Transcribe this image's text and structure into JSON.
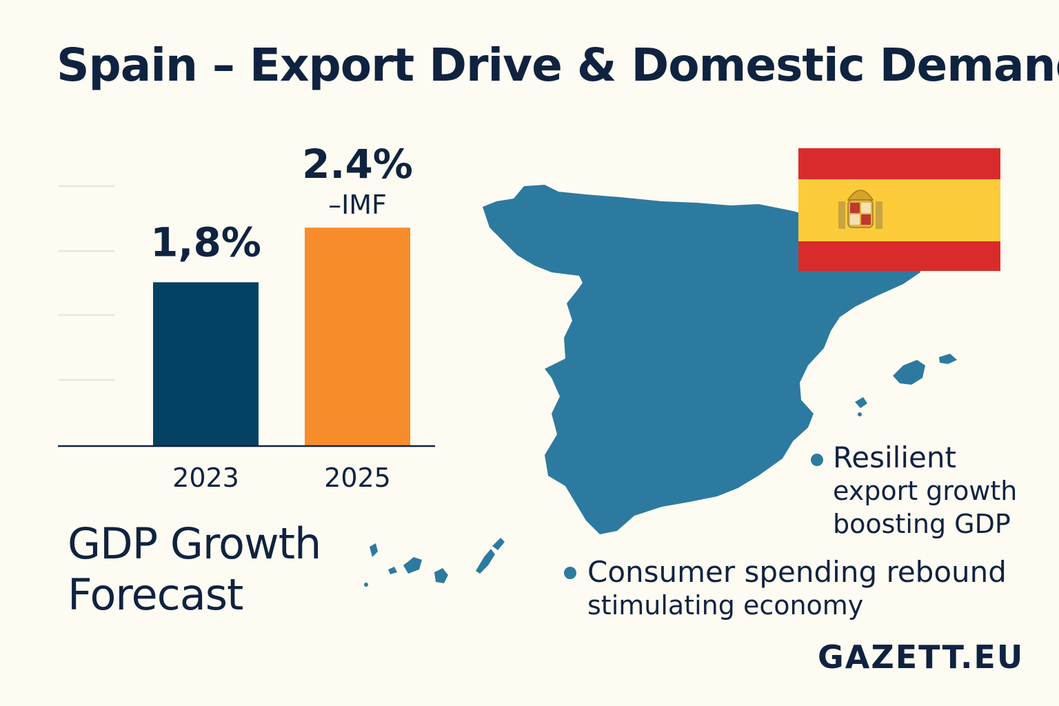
{
  "title": "Spain – Export Drive & Domestic Demand",
  "chart_data": {
    "type": "bar",
    "title": "GDP Growth Forecast",
    "title_lines": [
      "GDP Growth",
      "Forecast"
    ],
    "categories": [
      "2023",
      "2025"
    ],
    "values": [
      1.8,
      2.4
    ],
    "data_labels": [
      "1,8%",
      "2.4%"
    ],
    "annotations": [
      "",
      "–IMF"
    ],
    "colors": [
      "#044263",
      "#f78c2a"
    ],
    "ylim": [
      0,
      3.2
    ],
    "xlabel": "",
    "ylabel": "",
    "grid": true
  },
  "map": {
    "fill_color": "#2d7aa0",
    "flag_colors": {
      "red": "#d92b2b",
      "yellow": "#fbcb3a"
    }
  },
  "bullets": [
    {
      "lines": [
        "Resilient",
        "export growth",
        "boosting GDP"
      ]
    },
    {
      "lines": [
        "Consumer spending rebound",
        "stimulating economy"
      ]
    }
  ],
  "brand": "GAZETT.EU"
}
